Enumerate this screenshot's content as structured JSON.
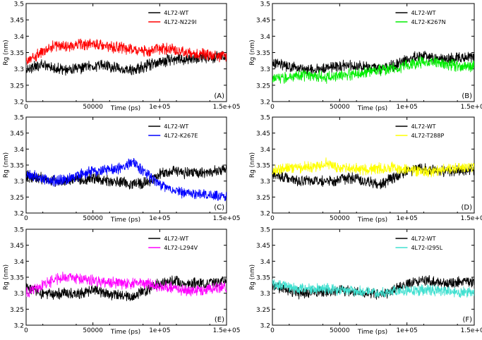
{
  "figure": {
    "x_ticks": [
      {
        "value": 0,
        "label": "0"
      },
      {
        "value": 50000,
        "label": "50000"
      },
      {
        "value": 100000,
        "label": "1e+05"
      },
      {
        "value": 150000,
        "label": "1.5e+05"
      }
    ],
    "y_ticks": [
      {
        "value": 3.2,
        "label": "3.2"
      },
      {
        "value": 3.25,
        "label": "3.25"
      },
      {
        "value": 3.3,
        "label": "3.3"
      },
      {
        "value": 3.35,
        "label": "3.35"
      },
      {
        "value": 3.4,
        "label": "3.4"
      },
      {
        "value": 3.45,
        "label": "3.45"
      },
      {
        "value": 3.5,
        "label": "3.5"
      }
    ]
  },
  "chart_data": [
    {
      "type": "line",
      "panel_label": "(A)",
      "xlabel": "Time (ps)",
      "ylabel": "Rg (nm)",
      "xlim": [
        0,
        150000
      ],
      "ylim": [
        3.2,
        3.5
      ],
      "legend_position": "top-right",
      "x": [
        0,
        10000,
        20000,
        30000,
        40000,
        50000,
        60000,
        70000,
        80000,
        90000,
        100000,
        110000,
        120000,
        130000,
        140000,
        150000
      ],
      "series": [
        {
          "name": "4L72-WT",
          "color": "#000000",
          "values": [
            3.3,
            3.31,
            3.305,
            3.295,
            3.3,
            3.31,
            3.31,
            3.3,
            3.295,
            3.31,
            3.32,
            3.33,
            3.33,
            3.335,
            3.335,
            3.34
          ]
        },
        {
          "name": "4L72-N229I",
          "color": "#ff0000",
          "values": [
            3.32,
            3.35,
            3.37,
            3.37,
            3.375,
            3.375,
            3.37,
            3.365,
            3.36,
            3.355,
            3.36,
            3.36,
            3.35,
            3.345,
            3.34,
            3.34
          ]
        }
      ]
    },
    {
      "type": "line",
      "panel_label": "(B)",
      "xlabel": "Time (ps)",
      "ylabel": "Rg (nm)",
      "xlim": [
        0,
        150000
      ],
      "ylim": [
        3.2,
        3.5
      ],
      "legend_position": "top-right",
      "x": [
        0,
        10000,
        20000,
        30000,
        40000,
        50000,
        60000,
        70000,
        80000,
        90000,
        100000,
        110000,
        120000,
        130000,
        140000,
        150000
      ],
      "series": [
        {
          "name": "4L72-WT",
          "color": "#000000",
          "values": [
            3.32,
            3.31,
            3.3,
            3.3,
            3.305,
            3.31,
            3.31,
            3.305,
            3.3,
            3.31,
            3.33,
            3.34,
            3.335,
            3.33,
            3.335,
            3.34
          ]
        },
        {
          "name": "4L72-K267N",
          "color": "#00ee00",
          "values": [
            3.27,
            3.275,
            3.28,
            3.28,
            3.275,
            3.28,
            3.285,
            3.29,
            3.295,
            3.3,
            3.31,
            3.32,
            3.32,
            3.315,
            3.305,
            3.31
          ]
        }
      ]
    },
    {
      "type": "line",
      "panel_label": "(C)",
      "xlabel": "Time (ps)",
      "ylabel": "Rg (nm)",
      "xlim": [
        0,
        150000
      ],
      "ylim": [
        3.2,
        3.5
      ],
      "legend_position": "top-right",
      "x": [
        0,
        10000,
        20000,
        30000,
        40000,
        50000,
        60000,
        70000,
        80000,
        90000,
        100000,
        110000,
        120000,
        130000,
        140000,
        150000
      ],
      "series": [
        {
          "name": "4L72-WT",
          "color": "#000000",
          "values": [
            3.315,
            3.31,
            3.3,
            3.3,
            3.305,
            3.31,
            3.3,
            3.3,
            3.29,
            3.295,
            3.32,
            3.33,
            3.325,
            3.325,
            3.33,
            3.335
          ]
        },
        {
          "name": "4L72-K267E",
          "color": "#0000ff",
          "values": [
            3.32,
            3.31,
            3.3,
            3.305,
            3.32,
            3.33,
            3.335,
            3.34,
            3.36,
            3.32,
            3.29,
            3.27,
            3.26,
            3.26,
            3.255,
            3.25
          ]
        }
      ]
    },
    {
      "type": "line",
      "panel_label": "(D)",
      "xlabel": "Time (ps)",
      "ylabel": "Rg (nm)",
      "xlim": [
        0,
        150000
      ],
      "ylim": [
        3.2,
        3.5
      ],
      "legend_position": "top-right",
      "x": [
        0,
        10000,
        20000,
        30000,
        40000,
        50000,
        60000,
        70000,
        80000,
        90000,
        100000,
        110000,
        120000,
        130000,
        140000,
        150000
      ],
      "series": [
        {
          "name": "4L72-WT",
          "color": "#000000",
          "values": [
            3.32,
            3.31,
            3.3,
            3.3,
            3.3,
            3.305,
            3.31,
            3.3,
            3.29,
            3.31,
            3.33,
            3.34,
            3.335,
            3.33,
            3.335,
            3.335
          ]
        },
        {
          "name": "4L72-T288P",
          "color": "#ffff00",
          "values": [
            3.33,
            3.34,
            3.34,
            3.345,
            3.355,
            3.34,
            3.34,
            3.335,
            3.34,
            3.34,
            3.335,
            3.33,
            3.33,
            3.335,
            3.34,
            3.34
          ]
        }
      ]
    },
    {
      "type": "line",
      "panel_label": "(E)",
      "xlabel": "Time (ps)",
      "ylabel": "Rg (nm)",
      "xlim": [
        0,
        150000
      ],
      "ylim": [
        3.2,
        3.5
      ],
      "legend_position": "top-right",
      "x": [
        0,
        10000,
        20000,
        30000,
        40000,
        50000,
        60000,
        70000,
        80000,
        90000,
        100000,
        110000,
        120000,
        130000,
        140000,
        150000
      ],
      "series": [
        {
          "name": "4L72-WT",
          "color": "#000000",
          "values": [
            3.32,
            3.3,
            3.295,
            3.3,
            3.3,
            3.31,
            3.3,
            3.29,
            3.29,
            3.31,
            3.33,
            3.34,
            3.33,
            3.33,
            3.335,
            3.34
          ]
        },
        {
          "name": "4L72-L294V",
          "color": "#ff00ff",
          "values": [
            3.3,
            3.32,
            3.34,
            3.35,
            3.345,
            3.34,
            3.335,
            3.33,
            3.33,
            3.33,
            3.32,
            3.315,
            3.31,
            3.31,
            3.315,
            3.32
          ]
        }
      ]
    },
    {
      "type": "line",
      "panel_label": "(F)",
      "xlabel": "Time (ps)",
      "ylabel": "Rg (nm)",
      "xlim": [
        0,
        150000
      ],
      "ylim": [
        3.2,
        3.5
      ],
      "legend_position": "top-right",
      "x": [
        0,
        10000,
        20000,
        30000,
        40000,
        50000,
        60000,
        70000,
        80000,
        90000,
        100000,
        110000,
        120000,
        130000,
        140000,
        150000
      ],
      "series": [
        {
          "name": "4L72-WT",
          "color": "#000000",
          "values": [
            3.325,
            3.31,
            3.3,
            3.305,
            3.305,
            3.31,
            3.305,
            3.3,
            3.295,
            3.31,
            3.33,
            3.34,
            3.335,
            3.33,
            3.335,
            3.335
          ]
        },
        {
          "name": "4L72-I295L",
          "color": "#40e0d0",
          "values": [
            3.33,
            3.32,
            3.315,
            3.315,
            3.315,
            3.31,
            3.31,
            3.305,
            3.3,
            3.305,
            3.31,
            3.31,
            3.31,
            3.305,
            3.305,
            3.3
          ]
        }
      ]
    }
  ]
}
